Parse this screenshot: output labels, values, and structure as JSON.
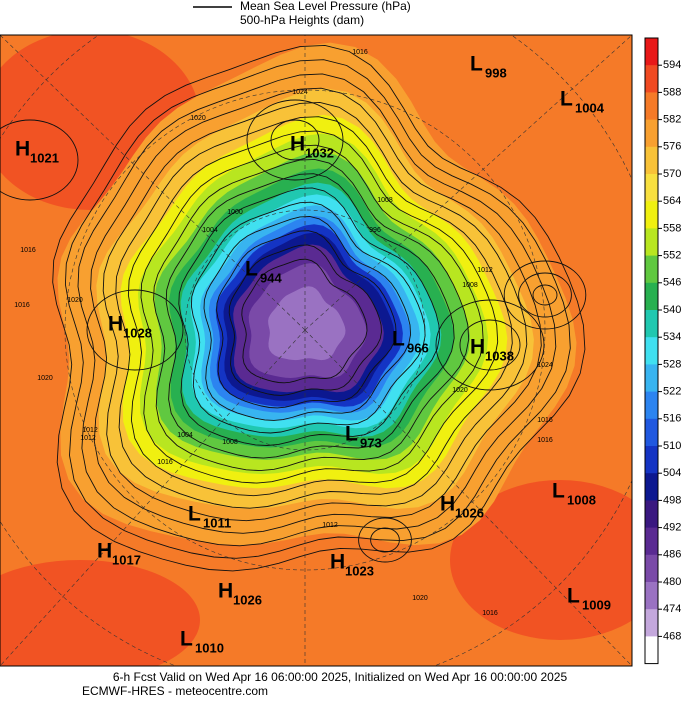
{
  "header": {
    "legend_line": "Mean Sea Level Pressure (hPa)",
    "legend_fill": "500-hPa Heights (dam)"
  },
  "colorbar": {
    "ticks": [
      594,
      588,
      582,
      576,
      570,
      564,
      558,
      552,
      546,
      540,
      534,
      528,
      522,
      516,
      510,
      504,
      498,
      492,
      486,
      480,
      474,
      468
    ],
    "colors": [
      "#e81818",
      "#f04a22",
      "#f57a28",
      "#f8a030",
      "#f8c238",
      "#f8e040",
      "#f0f010",
      "#b8e620",
      "#60c840",
      "#28b050",
      "#20c8b0",
      "#40e0f0",
      "#38b4f0",
      "#2c84f0",
      "#2058e0",
      "#1434c4",
      "#0c1890",
      "#3a1880",
      "#5a2a92",
      "#7a4aa8",
      "#9a72c2",
      "#c4a8dc",
      "#ffffff"
    ]
  },
  "centers": [
    {
      "type": "L",
      "pressure": 998
    },
    {
      "type": "L",
      "pressure": 1004
    },
    {
      "type": "H",
      "pressure": 1021
    },
    {
      "type": "H",
      "pressure": 1032
    },
    {
      "type": "L",
      "pressure": 944
    },
    {
      "type": "H",
      "pressure": 1028
    },
    {
      "type": "L",
      "pressure": 966
    },
    {
      "type": "H",
      "pressure": 1038
    },
    {
      "type": "L",
      "pressure": 973
    },
    {
      "type": "L",
      "pressure": 1008
    },
    {
      "type": "H",
      "pressure": 1026
    },
    {
      "type": "L",
      "pressure": 1011
    },
    {
      "type": "H",
      "pressure": 1017
    },
    {
      "type": "H",
      "pressure": 1023
    },
    {
      "type": "H",
      "pressure": 1026
    },
    {
      "type": "L",
      "pressure": 1009
    },
    {
      "type": "L",
      "pressure": 1010
    }
  ],
  "isobar_labels": [
    1016,
    1024,
    1020,
    1016,
    1012,
    1016,
    1020,
    1020,
    1012,
    1008,
    1004,
    1000,
    1004,
    1008,
    996,
    1012,
    1008,
    1020,
    1024,
    1016,
    1012,
    1016,
    1020,
    1016,
    1016
  ],
  "footer": {
    "valid": "6-h Fcst Valid on Wed Apr 16 06:00:00 2025, Initialized on Wed Apr 16 00:00:00 2025",
    "source": "ECMWF-HRES - meteocentre.com"
  }
}
